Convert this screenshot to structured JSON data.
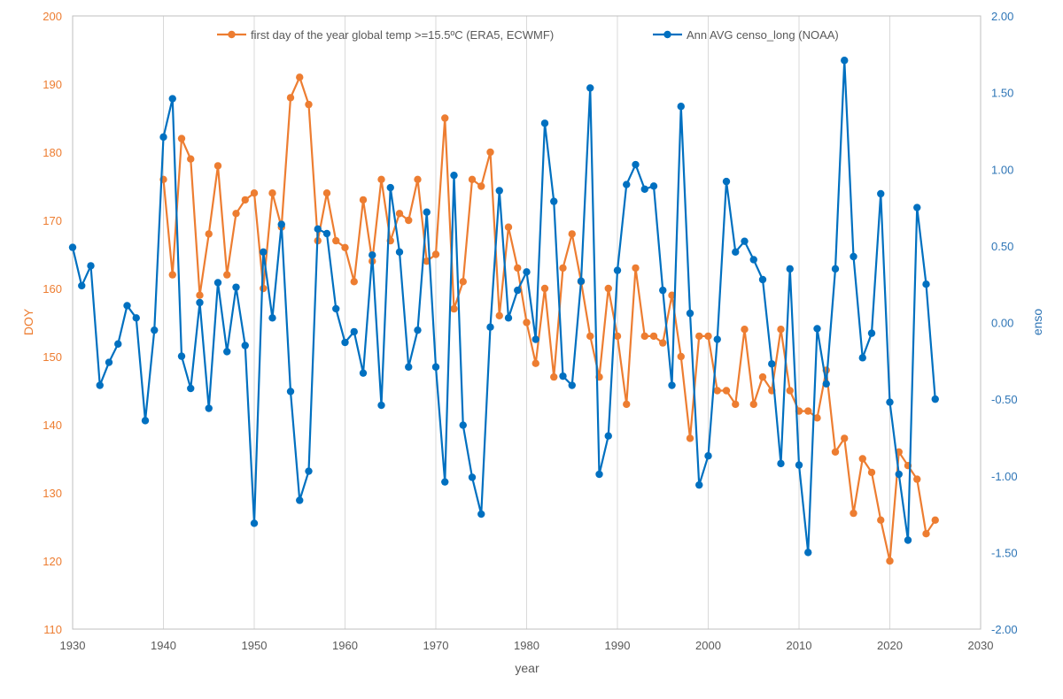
{
  "chart_data": {
    "type": "line",
    "xlabel": "year",
    "ylabel_left": "DOY",
    "ylabel_right": "enso",
    "xlim": [
      1930,
      2030
    ],
    "ylim_left": [
      110,
      200
    ],
    "ylim_right": [
      -2.0,
      2.0
    ],
    "x_ticks": [
      "1930",
      "1940",
      "1950",
      "1960",
      "1970",
      "1980",
      "1990",
      "2000",
      "2010",
      "2020",
      "2030"
    ],
    "y_left_ticks": [
      "110",
      "120",
      "130",
      "140",
      "150",
      "160",
      "170",
      "180",
      "190",
      "200"
    ],
    "y_right_ticks": [
      "-2.00",
      "-1.50",
      "-1.00",
      "-0.50",
      "0.00",
      "0.50",
      "1.00",
      "1.50",
      "2.00"
    ],
    "grid": "vertical",
    "legend_position": "top",
    "series": [
      {
        "name": "first day of the year global temp >=15.5ºC (ERA5, ECWMF)",
        "axis": "left",
        "color": "#ED7D31",
        "x": [
          1940,
          1941,
          1942,
          1943,
          1944,
          1945,
          1946,
          1947,
          1948,
          1949,
          1950,
          1951,
          1952,
          1953,
          1954,
          1955,
          1956,
          1957,
          1958,
          1959,
          1960,
          1961,
          1962,
          1963,
          1964,
          1965,
          1966,
          1967,
          1968,
          1969,
          1970,
          1971,
          1972,
          1973,
          1974,
          1975,
          1976,
          1977,
          1978,
          1979,
          1980,
          1981,
          1982,
          1983,
          1984,
          1985,
          1986,
          1987,
          1988,
          1989,
          1990,
          1991,
          1992,
          1993,
          1994,
          1995,
          1996,
          1997,
          1998,
          1999,
          2000,
          2001,
          2002,
          2003,
          2004,
          2005,
          2006,
          2007,
          2008,
          2009,
          2010,
          2011,
          2012,
          2013,
          2014,
          2015,
          2016,
          2017,
          2018,
          2019,
          2020,
          2021,
          2022,
          2023,
          2024,
          2025
        ],
        "values": [
          176,
          162,
          182,
          179,
          159,
          168,
          178,
          162,
          171,
          173,
          174,
          160,
          174,
          169,
          188,
          191,
          187,
          167,
          174,
          167,
          166,
          161,
          173,
          164,
          176,
          167,
          171,
          170,
          176,
          164,
          165,
          185,
          157,
          161,
          176,
          175,
          180,
          156,
          169,
          163,
          155,
          149,
          160,
          147,
          163,
          168,
          161,
          153,
          147,
          160,
          153,
          143,
          163,
          153,
          153,
          152,
          159,
          150,
          138,
          153,
          153,
          145,
          145,
          143,
          154,
          143,
          147,
          145,
          154,
          145,
          142,
          142,
          141,
          148,
          136,
          138,
          127,
          135,
          133,
          126,
          120,
          136,
          134,
          132,
          124,
          126
        ]
      },
      {
        "name": "Ann AVG censo_long (NOAA)",
        "axis": "right",
        "color": "#0070C0",
        "x": [
          1930,
          1931,
          1932,
          1933,
          1934,
          1935,
          1936,
          1937,
          1938,
          1939,
          1940,
          1941,
          1942,
          1943,
          1944,
          1945,
          1946,
          1947,
          1948,
          1949,
          1950,
          1951,
          1952,
          1953,
          1954,
          1955,
          1956,
          1957,
          1958,
          1959,
          1960,
          1961,
          1962,
          1963,
          1964,
          1965,
          1966,
          1967,
          1968,
          1969,
          1970,
          1971,
          1972,
          1973,
          1974,
          1975,
          1976,
          1977,
          1978,
          1979,
          1980,
          1981,
          1982,
          1983,
          1984,
          1985,
          1986,
          1987,
          1988,
          1989,
          1990,
          1991,
          1992,
          1993,
          1994,
          1995,
          1996,
          1997,
          1998,
          1999,
          2000,
          2001,
          2002,
          2003,
          2004,
          2005,
          2006,
          2007,
          2008,
          2009,
          2010,
          2011,
          2012,
          2013,
          2014,
          2015,
          2016,
          2017,
          2018,
          2019,
          2020,
          2021,
          2022,
          2023,
          2024,
          2025
        ],
        "values": [
          0.49,
          0.24,
          0.37,
          -0.41,
          -0.26,
          -0.14,
          0.11,
          0.03,
          -0.64,
          -0.05,
          1.21,
          1.46,
          -0.22,
          -0.43,
          0.13,
          -0.56,
          0.26,
          -0.19,
          0.23,
          -0.15,
          -1.31,
          0.46,
          0.03,
          0.64,
          -0.45,
          -1.16,
          -0.97,
          0.61,
          0.58,
          0.09,
          -0.13,
          -0.06,
          -0.33,
          0.44,
          -0.54,
          0.88,
          0.46,
          -0.29,
          -0.05,
          0.72,
          -0.29,
          -1.04,
          0.96,
          -0.67,
          -1.01,
          -1.25,
          -0.03,
          0.86,
          0.03,
          0.21,
          0.33,
          -0.11,
          1.3,
          0.79,
          -0.35,
          -0.41,
          0.27,
          1.53,
          -0.99,
          -0.74,
          0.34,
          0.9,
          1.03,
          0.87,
          0.89,
          0.21,
          -0.41,
          1.41,
          0.06,
          -1.06,
          -0.87,
          -0.11,
          0.92,
          0.46,
          0.53,
          0.41,
          0.28,
          -0.27,
          -0.92,
          0.35,
          -0.93,
          -1.5,
          -0.04,
          -0.4,
          0.35,
          1.71,
          0.43,
          -0.23,
          -0.07,
          0.84,
          -0.52,
          -0.99,
          -1.42,
          0.75,
          0.25,
          -0.5
        ]
      }
    ]
  }
}
